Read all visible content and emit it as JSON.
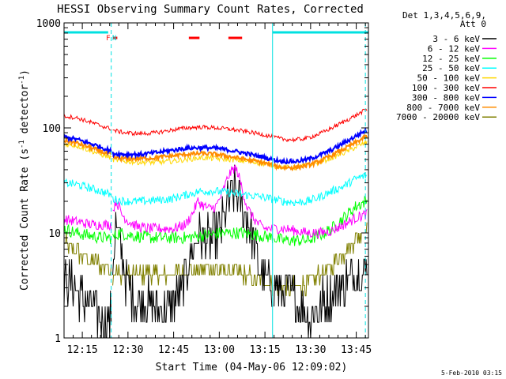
{
  "chart_data": {
    "type": "line",
    "title": "HESSI Observing Summary Count Rates, Corrected",
    "xlabel": "Start Time (04-May-06 12:09:02)",
    "ylabel": "Corrected Count Rate (s⁻¹ detector⁻¹)",
    "ylabel_parts": [
      "Corrected Count Rate (s",
      "-1",
      " detector",
      "-1",
      ")"
    ],
    "yscale": "log",
    "ylim": [
      1,
      1000
    ],
    "xlim_minutes": [
      0,
      100
    ],
    "x_unit": "minutes after 12:09:02",
    "y_ticks": [
      {
        "value": 1,
        "label": "1"
      },
      {
        "value": 10,
        "label": "10"
      },
      {
        "value": 100,
        "label": "100"
      },
      {
        "value": 1000,
        "label": "1000"
      }
    ],
    "x_ticks": [
      {
        "minute": 6,
        "label": "12:15"
      },
      {
        "minute": 21,
        "label": "12:30"
      },
      {
        "minute": 36,
        "label": "12:45"
      },
      {
        "minute": 51,
        "label": "13:00"
      },
      {
        "minute": 66,
        "label": "13:15"
      },
      {
        "minute": 81,
        "label": "13:30"
      },
      {
        "minute": 96,
        "label": "13:45"
      }
    ],
    "legend_header": [
      "Det 1,3,4,5,6,9,",
      "Att 0"
    ],
    "legend_position": "right",
    "footer_date": "5-Feb-2010 03:15",
    "flags": [
      {
        "label": "F",
        "color": "#ff0000",
        "minute": 14.5
      },
      {
        "label": "N",
        "color": "#00e0e0",
        "minute": 16.5
      }
    ],
    "day_bars": [
      {
        "start": 0,
        "end": 14.5
      },
      {
        "start": 68.5,
        "end": 100
      }
    ],
    "saa_bars": [
      {
        "start": 16,
        "end": 17.5
      },
      {
        "start": 41,
        "end": 44.5
      },
      {
        "start": 54,
        "end": 58.5
      }
    ],
    "boundary_lines": [
      {
        "minute": 0,
        "style": "solid"
      },
      {
        "minute": 15.5,
        "style": "dashed"
      },
      {
        "minute": 68.5,
        "style": "solid"
      },
      {
        "minute": 99,
        "style": "dashed"
      }
    ],
    "gaps": [
      [
        15.5,
        16.0
      ],
      [
        68.5,
        68.9
      ]
    ],
    "series": [
      {
        "name": "3 - 6 keV",
        "color": "#000000",
        "x": [
          0,
          3,
          6,
          9,
          12,
          14,
          15.5,
          16,
          17,
          18,
          19,
          20,
          22,
          26,
          30,
          34,
          38,
          40,
          42,
          44,
          46,
          48,
          50,
          52,
          54,
          56,
          58,
          60,
          62,
          64,
          66,
          68.5,
          72,
          75,
          78,
          81,
          84,
          87,
          90,
          93,
          96,
          99
        ],
        "y": [
          3.5,
          3,
          2.5,
          2,
          1.6,
          1.5,
          1.5,
          5,
          11,
          9,
          6,
          4,
          2.5,
          2.2,
          2,
          2,
          2.5,
          4,
          7,
          10,
          9,
          8,
          9,
          12,
          20,
          25,
          20,
          14,
          8,
          5,
          3.5,
          3,
          2.8,
          2.5,
          2,
          1.5,
          2,
          2.5,
          3,
          3.5,
          4,
          4.5
        ]
      },
      {
        "name": "6 - 12 keV",
        "color": "#ff00ff",
        "x": [
          0,
          3,
          6,
          9,
          12,
          15.5,
          16,
          17,
          18,
          19,
          21,
          24,
          28,
          32,
          36,
          40,
          42,
          44,
          46,
          48,
          50,
          52,
          54,
          56,
          57,
          58,
          60,
          62,
          64,
          66,
          68.5,
          72,
          76,
          80,
          84,
          88,
          92,
          96,
          99
        ],
        "y": [
          13.5,
          13,
          12.5,
          12,
          12,
          12,
          16,
          20,
          18,
          15,
          13,
          11.5,
          11,
          11,
          11,
          12,
          15,
          20,
          18,
          17,
          18,
          24,
          35,
          42,
          38,
          30,
          18,
          14,
          12,
          11,
          11,
          11,
          10.5,
          10,
          10,
          10.5,
          12,
          14,
          15
        ]
      },
      {
        "name": "12 - 25 keV",
        "color": "#00ff00",
        "x": [
          0,
          4,
          8,
          12,
          15.5,
          16,
          18,
          22,
          28,
          34,
          40,
          46,
          52,
          58,
          64,
          68.5,
          72,
          76,
          80,
          84,
          88,
          92,
          96,
          99
        ],
        "y": [
          11,
          10,
          9.5,
          9,
          9,
          9,
          10,
          9.5,
          9,
          9,
          9,
          9.5,
          10,
          10,
          9.5,
          9,
          8.5,
          8.5,
          8.5,
          9.5,
          11,
          14,
          18,
          20
        ]
      },
      {
        "name": "25 - 50 keV",
        "color": "#00ffff",
        "x": [
          0,
          4,
          8,
          12,
          15.5,
          16,
          20,
          25,
          30,
          35,
          40,
          45,
          50,
          55,
          60,
          65,
          68.5,
          72,
          76,
          80,
          84,
          88,
          92,
          96,
          99
        ],
        "y": [
          30,
          29,
          27,
          25,
          23,
          21,
          20,
          20,
          20.5,
          21,
          23,
          25,
          25,
          24,
          23,
          22,
          21,
          20,
          19.5,
          20,
          22,
          25,
          28,
          33,
          35
        ]
      },
      {
        "name": "50 - 100 keV",
        "color": "#ffd700",
        "x": [
          0,
          4,
          8,
          12,
          15.5,
          16,
          20,
          25,
          30,
          35,
          40,
          45,
          50,
          55,
          60,
          65,
          68.5,
          72,
          76,
          80,
          84,
          88,
          92,
          96,
          99
        ],
        "y": [
          70,
          68,
          62,
          56,
          52,
          50,
          48,
          47,
          47,
          48,
          50,
          52,
          51,
          50,
          48,
          46,
          44,
          42,
          42,
          44,
          47,
          52,
          58,
          66,
          72
        ]
      },
      {
        "name": "100 - 300 keV",
        "color": "#ff0000",
        "x": [
          0,
          4,
          8,
          12,
          15.5,
          16,
          20,
          25,
          30,
          35,
          40,
          45,
          50,
          55,
          60,
          65,
          68.5,
          72,
          76,
          80,
          84,
          88,
          92,
          96,
          99
        ],
        "y": [
          130,
          125,
          115,
          105,
          98,
          95,
          90,
          88,
          90,
          95,
          100,
          102,
          100,
          97,
          92,
          87,
          82,
          78,
          77,
          80,
          88,
          100,
          115,
          132,
          148
        ]
      },
      {
        "name": "300 - 800 keV",
        "color": "#0000ff",
        "x": [
          0,
          4,
          8,
          12,
          15.5,
          16,
          20,
          25,
          30,
          35,
          40,
          45,
          50,
          55,
          60,
          65,
          68.5,
          72,
          76,
          80,
          84,
          88,
          92,
          96,
          99
        ],
        "y": [
          82,
          78,
          72,
          66,
          60,
          57,
          56,
          56,
          58,
          61,
          64,
          65,
          64,
          61,
          57,
          53,
          50,
          48,
          48,
          50,
          55,
          62,
          72,
          84,
          94
        ]
      },
      {
        "name": "800 - 7000 keV",
        "color": "#ff8c00",
        "x": [
          0,
          4,
          8,
          12,
          15.5,
          16,
          20,
          25,
          30,
          35,
          40,
          45,
          50,
          55,
          60,
          65,
          68.5,
          72,
          76,
          80,
          84,
          88,
          92,
          96,
          99
        ],
        "y": [
          76,
          72,
          66,
          60,
          55,
          52,
          51,
          51,
          52,
          54,
          56,
          57,
          56,
          53,
          50,
          47,
          44,
          42,
          42,
          44,
          48,
          55,
          63,
          73,
          82
        ]
      },
      {
        "name": "7000 - 20000 keV",
        "color": "#808000",
        "x": [
          0,
          3,
          6,
          9,
          12,
          15.5,
          16,
          18,
          21,
          26,
          32,
          38,
          44,
          50,
          56,
          62,
          66,
          68.5,
          72,
          76,
          80,
          84,
          88,
          92,
          96,
          99
        ],
        "y": [
          8,
          7,
          6,
          5.5,
          5,
          4.5,
          4.2,
          4,
          4,
          4,
          4,
          4.2,
          4.5,
          4.5,
          4.2,
          3.8,
          3.5,
          3.2,
          3,
          3,
          3.2,
          4,
          5,
          6.5,
          9,
          11
        ]
      }
    ]
  }
}
